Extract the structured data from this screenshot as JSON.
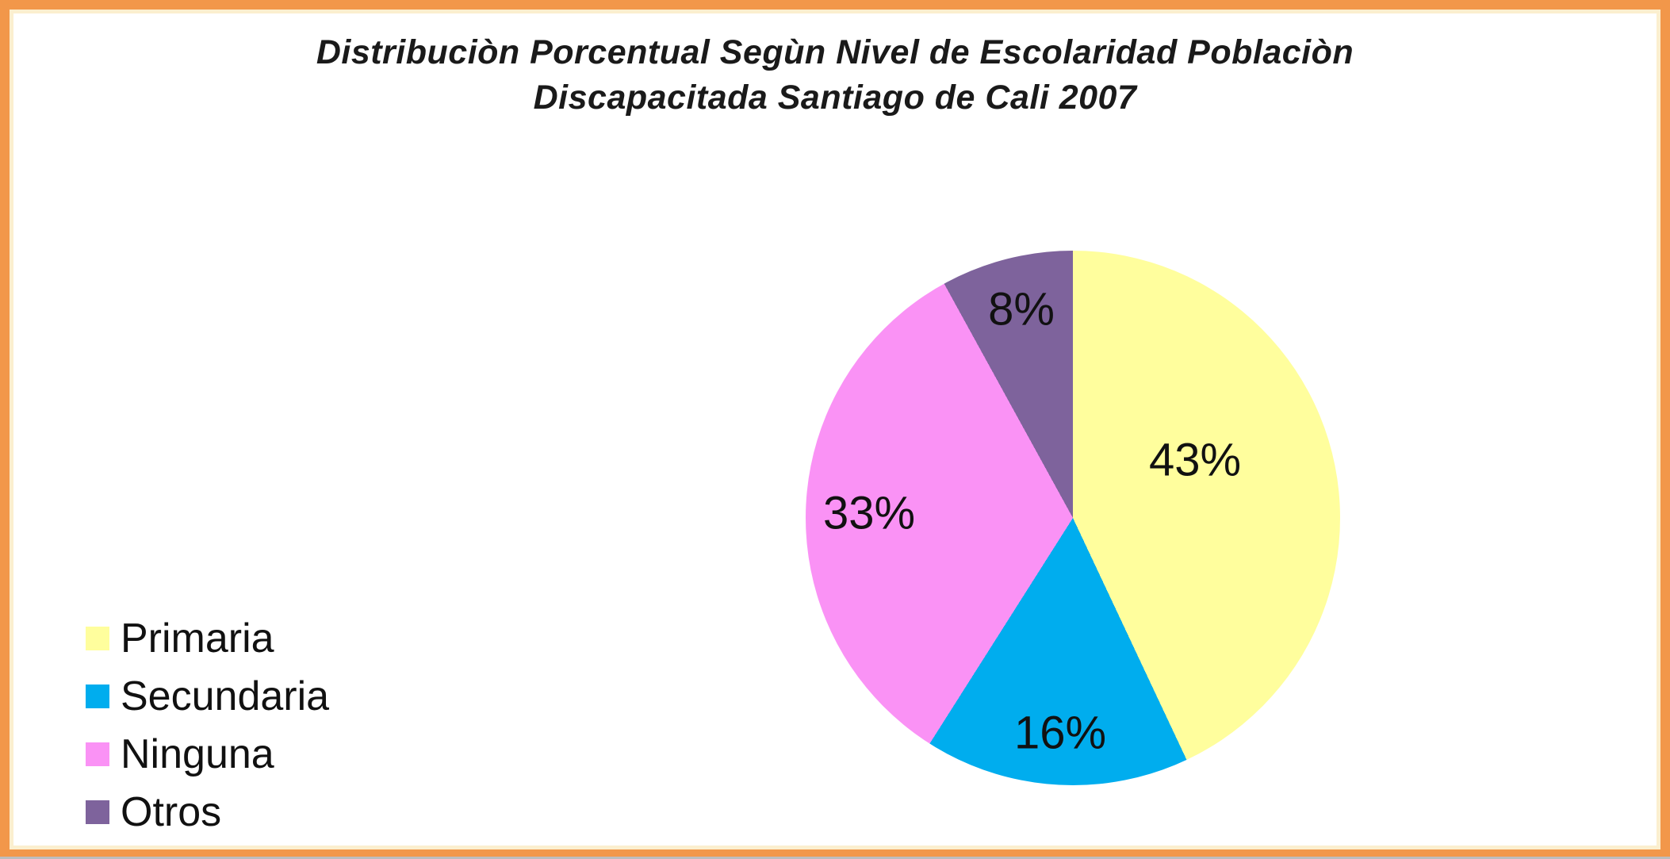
{
  "title": {
    "line1": "Distribuciòn Porcentual Segùn Nivel de Escolaridad Poblaciòn",
    "line2": "Discapacitada Santiago de Cali 2007"
  },
  "frame": {
    "border_color": "#F2974A",
    "inner_edge_color": "#FBEFCF",
    "background_color": "#FFFFFF"
  },
  "chart_data": {
    "type": "pie",
    "title": "Distribuciòn Porcentual Segùn Nivel de Escolaridad Poblaciòn Discapacitada Santiago de Cali 2007",
    "start_angle_deg": 0,
    "direction": "clockwise",
    "legend_position": "bottom-left",
    "categories": [
      "Primaria",
      "Secundaria",
      "Ninguna",
      "Otros"
    ],
    "values": [
      43,
      16,
      33,
      8
    ],
    "slices": [
      {
        "label": "Primaria",
        "value_pct": 43,
        "data_label": "43%",
        "color": "#FFFE9D"
      },
      {
        "label": "Secundaria",
        "value_pct": 16,
        "data_label": "16%",
        "color": "#00ADEE"
      },
      {
        "label": "Ninguna",
        "value_pct": 33,
        "data_label": "33%",
        "color": "#FA92F5"
      },
      {
        "label": "Otros",
        "value_pct": 8,
        "data_label": "8%",
        "color": "#7E639C"
      }
    ]
  }
}
